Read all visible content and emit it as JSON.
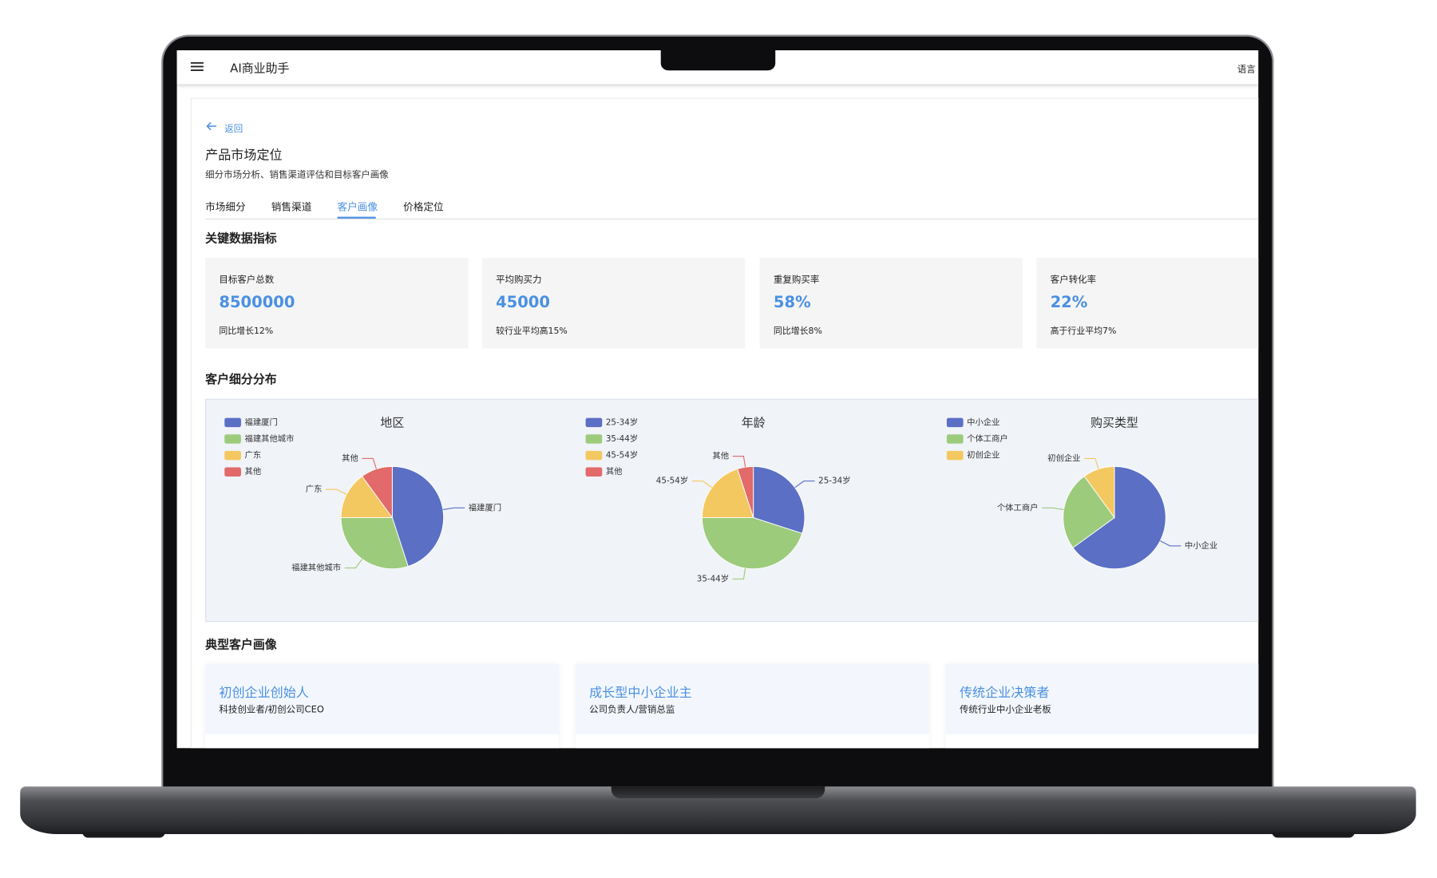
{
  "app": {
    "title": "AI商业助手",
    "language": "语言"
  },
  "page": {
    "back": "返回",
    "title": "产品市场定位",
    "subtitle": "细分市场分析、销售渠道评估和目标客户画像"
  },
  "tabs": [
    {
      "label": "市场细分",
      "active": false
    },
    {
      "label": "销售渠道",
      "active": false
    },
    {
      "label": "客户画像",
      "active": true
    },
    {
      "label": "价格定位",
      "active": false
    }
  ],
  "metrics": {
    "title": "关键数据指标",
    "items": [
      {
        "label": "目标客户总数",
        "value": "8500000",
        "note": "同比增长12%"
      },
      {
        "label": "平均购买力",
        "value": "45000",
        "note": "较行业平均高15%"
      },
      {
        "label": "重复购买率",
        "value": "58%",
        "note": "同比增长8%"
      },
      {
        "label": "客户转化率",
        "value": "22%",
        "note": "高于行业平均7%"
      }
    ]
  },
  "segments_title": "客户细分分布",
  "chart_data": [
    {
      "type": "pie",
      "title": "地区",
      "categories": [
        "福建厦门",
        "福建其他城市",
        "广东",
        "其他"
      ],
      "values": [
        45,
        30,
        15,
        10
      ],
      "colors": [
        "#5b6fc4",
        "#9ccb7c",
        "#f4c861",
        "#e26a6a"
      ],
      "legend": "top-left"
    },
    {
      "type": "pie",
      "title": "年龄",
      "categories": [
        "25-34岁",
        "35-44岁",
        "45-54岁",
        "其他"
      ],
      "values": [
        30,
        45,
        20,
        5
      ],
      "colors": [
        "#5b6fc4",
        "#9ccb7c",
        "#f4c861",
        "#e26a6a"
      ],
      "legend": "top-left"
    },
    {
      "type": "pie",
      "title": "购买类型",
      "categories": [
        "中小企业",
        "个体工商户",
        "初创企业"
      ],
      "values": [
        65,
        25,
        10
      ],
      "colors": [
        "#5b6fc4",
        "#9ccb7c",
        "#f4c861"
      ],
      "legend": "top-left"
    }
  ],
  "personas": {
    "title": "典型客户画像",
    "items": [
      {
        "name": "初创企业创始人",
        "role": "科技创业者/初创公司CEO"
      },
      {
        "name": "成长型中小企业主",
        "role": "公司负责人/营销总监"
      },
      {
        "name": "传统企业决策者",
        "role": "传统行业中小企业老板"
      }
    ]
  }
}
